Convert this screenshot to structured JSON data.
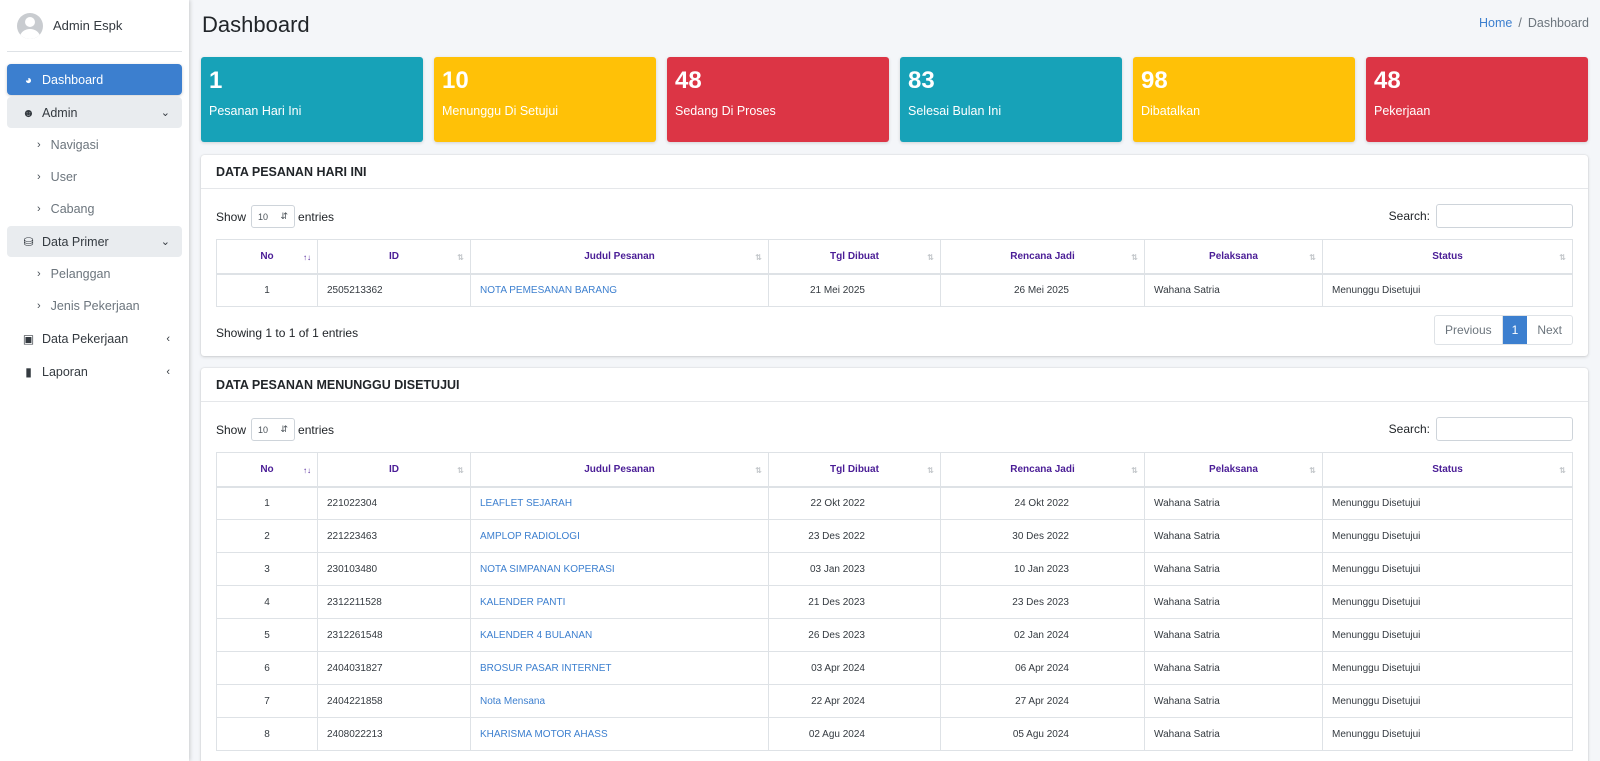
{
  "user": {
    "name": "Admin Espk"
  },
  "sidebar": {
    "dashboard": "Dashboard",
    "admin": "Admin",
    "admin_items": [
      "Navigasi",
      "User",
      "Cabang"
    ],
    "data_primer": "Data Primer",
    "data_primer_items": [
      "Pelanggan",
      "Jenis Pekerjaan"
    ],
    "data_pekerjaan": "Data Pekerjaan",
    "laporan": "Laporan"
  },
  "page": {
    "title": "Dashboard"
  },
  "breadcrumb": {
    "home": "Home",
    "current": "Dashboard"
  },
  "stats": [
    {
      "value": "1",
      "label": "Pesanan Hari Ini",
      "color": "#17a2b8"
    },
    {
      "value": "10",
      "label": "Menunggu Di Setujui",
      "color": "#ffc107"
    },
    {
      "value": "48",
      "label": "Sedang Di Proses",
      "color": "#dc3545"
    },
    {
      "value": "83",
      "label": "Selesai Bulan Ini",
      "color": "#17a2b8"
    },
    {
      "value": "98",
      "label": "Dibatalkan",
      "color": "#ffc107"
    },
    {
      "value": "48",
      "label": "Pekerjaan",
      "color": "#dc3545"
    }
  ],
  "table_columns": [
    "No",
    "ID",
    "Judul Pesanan",
    "Tgl Dibuat",
    "Rencana Jadi",
    "Pelaksana",
    "Status"
  ],
  "controls": {
    "show": "Show",
    "entries": "entries",
    "entries_value": "10",
    "search": "Search:"
  },
  "today": {
    "title": "DATA PESANAN HARI INI",
    "rows": [
      [
        "1",
        "2505213362",
        "NOTA PEMESANAN BARANG",
        "21 Mei 2025",
        "26 Mei 2025",
        "Wahana Satria",
        "Menunggu Disetujui"
      ]
    ],
    "info": "Showing 1 to 1 of 1 entries",
    "pager": {
      "previous": "Previous",
      "page": "1",
      "next": "Next"
    }
  },
  "waiting": {
    "title": "DATA PESANAN MENUNGGU DISETUJUI",
    "rows": [
      [
        "1",
        "221022304",
        "LEAFLET SEJARAH",
        "22 Okt 2022",
        "24 Okt 2022",
        "Wahana Satria",
        "Menunggu Disetujui"
      ],
      [
        "2",
        "221223463",
        "AMPLOP RADIOLOGI",
        "23 Des 2022",
        "30 Des 2022",
        "Wahana Satria",
        "Menunggu Disetujui"
      ],
      [
        "3",
        "230103480",
        "NOTA SIMPANAN KOPERASI",
        "03 Jan 2023",
        "10 Jan 2023",
        "Wahana Satria",
        "Menunggu Disetujui"
      ],
      [
        "4",
        "2312211528",
        "KALENDER PANTI",
        "21 Des 2023",
        "23 Des 2023",
        "Wahana Satria",
        "Menunggu Disetujui"
      ],
      [
        "5",
        "2312261548",
        "KALENDER 4 BULANAN",
        "26 Des 2023",
        "02 Jan 2024",
        "Wahana Satria",
        "Menunggu Disetujui"
      ],
      [
        "6",
        "2404031827",
        "BROSUR PASAR INTERNET",
        "03 Apr 2024",
        "06 Apr 2024",
        "Wahana Satria",
        "Menunggu Disetujui"
      ],
      [
        "7",
        "2404221858",
        "Nota Mensana",
        "22 Apr 2024",
        "27 Apr 2024",
        "Wahana Satria",
        "Menunggu Disetujui"
      ],
      [
        "8",
        "2408022213",
        "KHARISMA MOTOR AHASS",
        "02 Agu 2024",
        "05 Agu 2024",
        "Wahana Satria",
        "Menunggu Disetujui"
      ]
    ]
  }
}
